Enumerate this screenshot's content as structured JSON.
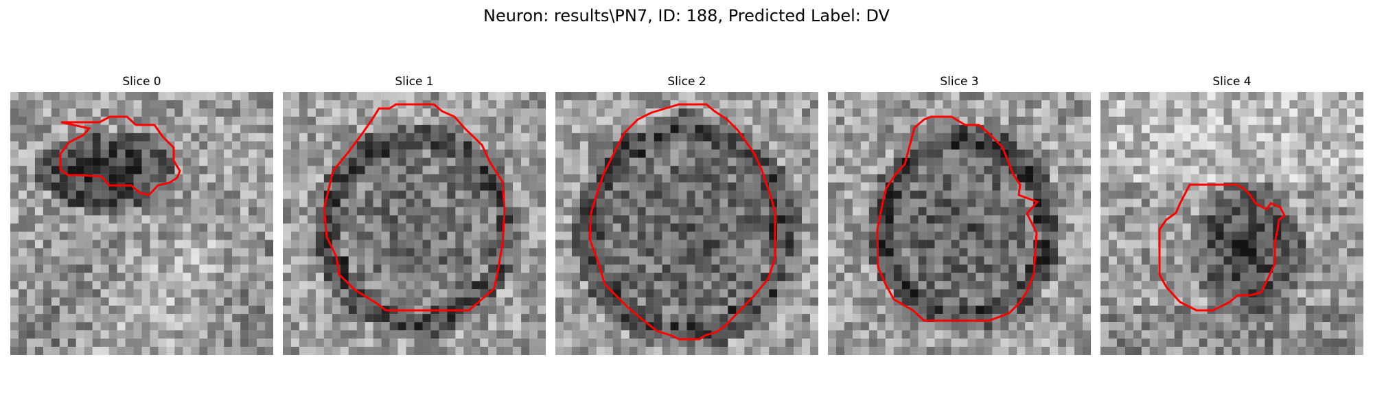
{
  "figure": {
    "title": "Neuron: results\\PN7, ID: 188, Predicted Label: DV"
  },
  "panels": [
    {
      "title": "Slice 0"
    },
    {
      "title": "Slice 1"
    },
    {
      "title": "Slice 2"
    },
    {
      "title": "Slice 3"
    },
    {
      "title": "Slice 4"
    }
  ],
  "colors": {
    "contour": "#ff0000",
    "background": "#ffffff"
  }
}
